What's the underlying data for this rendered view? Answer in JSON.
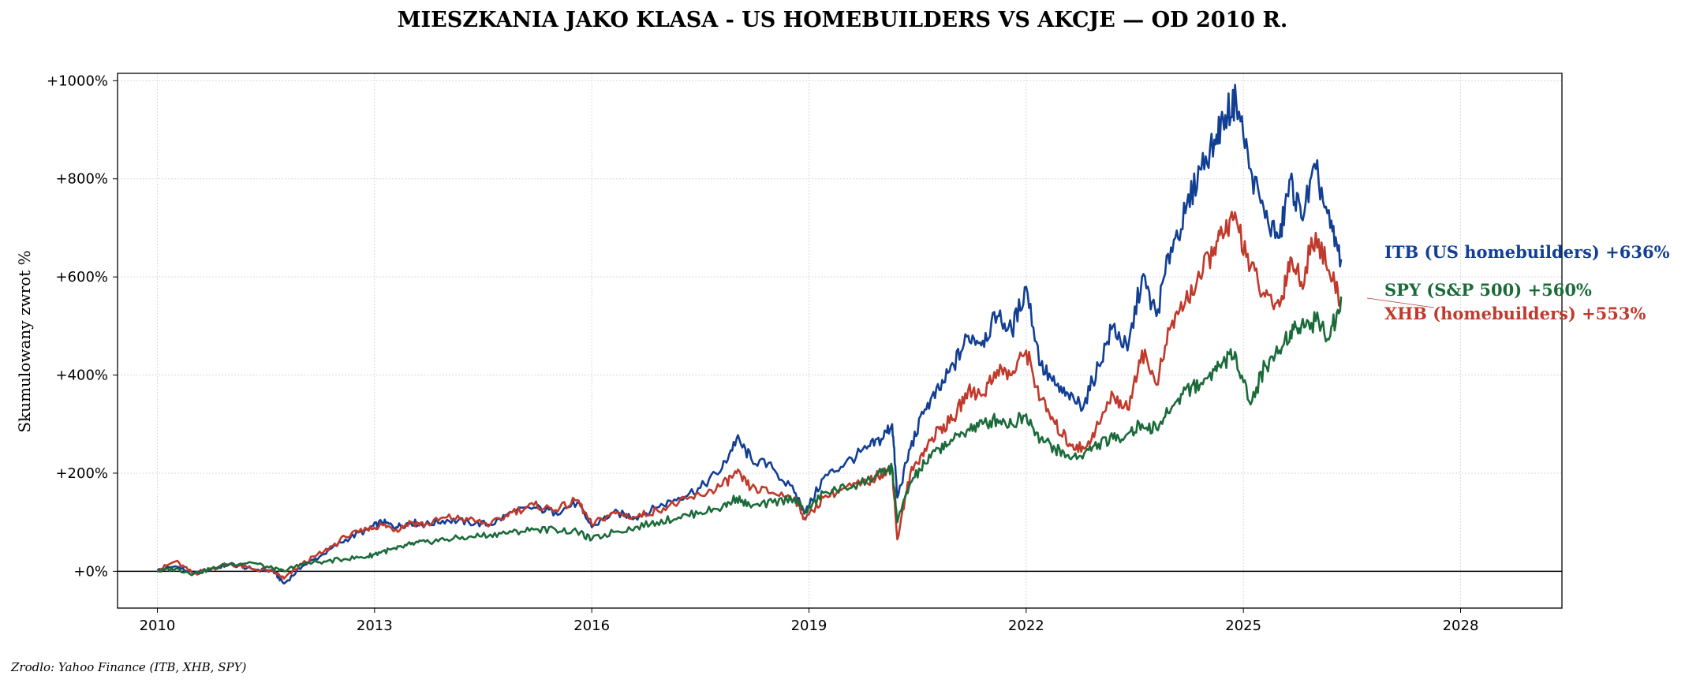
{
  "chart_data": {
    "type": "line",
    "title": "MIESZKANIA JAKO KLASA - US HOMEBUILDERS VS AKCJE — OD 2010 R.",
    "xlabel": "",
    "ylabel": "Skumulowany zwrot %",
    "xlim": [
      2009.45,
      2029.4
    ],
    "ylim": [
      -75,
      1015
    ],
    "x_ticks": [
      2010,
      2013,
      2016,
      2019,
      2022,
      2025,
      2028
    ],
    "y_ticks": [
      0,
      200,
      400,
      600,
      800,
      1000
    ],
    "y_tick_labels": [
      "+0%",
      "+200%",
      "+400%",
      "+600%",
      "+800%",
      "+1000%"
    ],
    "grid": true,
    "zero_line": true,
    "series": [
      {
        "name": "ITB (US homebuilders)",
        "end_label": "ITB (US homebuilders)  +636%",
        "color": "#123f94",
        "final": 636,
        "x": [
          2010.0,
          2010.25,
          2010.5,
          2010.75,
          2011.0,
          2011.3,
          2011.6,
          2011.75,
          2012.0,
          2012.3,
          2012.6,
          2012.9,
          2013.1,
          2013.3,
          2013.5,
          2013.7,
          2014.0,
          2014.3,
          2014.6,
          2014.9,
          2015.2,
          2015.5,
          2015.8,
          2016.0,
          2016.3,
          2016.6,
          2016.9,
          2017.2,
          2017.5,
          2017.8,
          2018.0,
          2018.2,
          2018.5,
          2018.8,
          2018.95,
          2019.2,
          2019.5,
          2019.8,
          2020.0,
          2020.15,
          2020.22,
          2020.4,
          2020.6,
          2020.8,
          2021.0,
          2021.2,
          2021.4,
          2021.6,
          2021.8,
          2022.0,
          2022.2,
          2022.4,
          2022.6,
          2022.8,
          2023.0,
          2023.2,
          2023.4,
          2023.6,
          2023.8,
          2024.0,
          2024.2,
          2024.4,
          2024.6,
          2024.75,
          2024.9,
          2025.1,
          2025.3,
          2025.5,
          2025.65,
          2025.8,
          2026.0,
          2026.2,
          2026.35
        ],
        "values": [
          2,
          10,
          -5,
          5,
          15,
          5,
          0,
          -25,
          10,
          35,
          65,
          85,
          100,
          90,
          100,
          95,
          105,
          100,
          95,
          120,
          130,
          120,
          140,
          90,
          120,
          110,
          130,
          150,
          170,
          210,
          270,
          230,
          210,
          160,
          120,
          190,
          220,
          250,
          270,
          300,
          150,
          250,
          330,
          370,
          420,
          480,
          470,
          520,
          490,
          580,
          420,
          380,
          350,
          340,
          420,
          500,
          450,
          600,
          520,
          660,
          730,
          820,
          880,
          930,
          960,
          820,
          720,
          680,
          800,
          720,
          820,
          700,
          636
        ]
      },
      {
        "name": "XHB (homebuilders)",
        "end_label": "XHB (homebuilders)  +553%",
        "color": "#c0392b",
        "final": 553,
        "x": [
          2010.0,
          2010.25,
          2010.5,
          2010.75,
          2011.0,
          2011.3,
          2011.6,
          2011.75,
          2012.0,
          2012.3,
          2012.6,
          2012.9,
          2013.1,
          2013.3,
          2013.5,
          2013.7,
          2014.0,
          2014.3,
          2014.6,
          2014.9,
          2015.2,
          2015.5,
          2015.8,
          2016.0,
          2016.3,
          2016.6,
          2016.9,
          2017.2,
          2017.5,
          2017.8,
          2018.0,
          2018.2,
          2018.5,
          2018.8,
          2018.95,
          2019.2,
          2019.5,
          2019.8,
          2020.0,
          2020.15,
          2020.22,
          2020.4,
          2020.6,
          2020.8,
          2021.0,
          2021.2,
          2021.4,
          2021.6,
          2021.8,
          2022.0,
          2022.2,
          2022.4,
          2022.6,
          2022.8,
          2023.0,
          2023.2,
          2023.4,
          2023.6,
          2023.8,
          2024.0,
          2024.2,
          2024.4,
          2024.6,
          2024.75,
          2024.9,
          2025.1,
          2025.3,
          2025.5,
          2025.65,
          2025.8,
          2026.0,
          2026.2,
          2026.35
        ],
        "values": [
          2,
          20,
          -5,
          5,
          15,
          5,
          0,
          -15,
          15,
          40,
          70,
          85,
          95,
          85,
          100,
          95,
          110,
          105,
          95,
          120,
          135,
          125,
          145,
          95,
          120,
          110,
          125,
          140,
          155,
          175,
          200,
          170,
          160,
          150,
          105,
          150,
          170,
          180,
          200,
          210,
          65,
          200,
          250,
          290,
          310,
          370,
          360,
          410,
          400,
          450,
          350,
          300,
          260,
          250,
          300,
          360,
          330,
          450,
          380,
          500,
          550,
          600,
          660,
          690,
          720,
          620,
          560,
          540,
          640,
          590,
          690,
          600,
          553
        ]
      },
      {
        "name": "SPY (S&P 500)",
        "end_label": "SPY (S&P 500)  +560%",
        "color": "#1b6b3a",
        "final": 560,
        "x": [
          2010.0,
          2010.25,
          2010.5,
          2010.75,
          2011.0,
          2011.3,
          2011.6,
          2011.75,
          2012.0,
          2012.3,
          2012.6,
          2012.9,
          2013.1,
          2013.3,
          2013.5,
          2013.7,
          2014.0,
          2014.3,
          2014.6,
          2014.9,
          2015.2,
          2015.5,
          2015.8,
          2016.0,
          2016.3,
          2016.6,
          2016.9,
          2017.2,
          2017.5,
          2017.8,
          2018.0,
          2018.2,
          2018.5,
          2018.8,
          2018.95,
          2019.2,
          2019.5,
          2019.8,
          2020.0,
          2020.15,
          2020.22,
          2020.4,
          2020.6,
          2020.8,
          2021.0,
          2021.2,
          2021.4,
          2021.6,
          2021.8,
          2022.0,
          2022.2,
          2022.4,
          2022.6,
          2022.8,
          2023.0,
          2023.2,
          2023.4,
          2023.6,
          2023.8,
          2024.0,
          2024.2,
          2024.4,
          2024.6,
          2024.75,
          2024.9,
          2025.1,
          2025.3,
          2025.5,
          2025.65,
          2025.8,
          2026.0,
          2026.2,
          2026.35
        ],
        "values": [
          0,
          5,
          -5,
          5,
          15,
          18,
          5,
          0,
          15,
          20,
          25,
          30,
          40,
          45,
          55,
          60,
          65,
          70,
          75,
          80,
          85,
          85,
          80,
          65,
          80,
          90,
          100,
          110,
          120,
          130,
          150,
          130,
          140,
          150,
          120,
          160,
          170,
          185,
          200,
          210,
          100,
          180,
          220,
          250,
          270,
          290,
          300,
          310,
          300,
          320,
          270,
          250,
          230,
          240,
          260,
          270,
          280,
          300,
          290,
          330,
          370,
          380,
          410,
          430,
          440,
          340,
          420,
          450,
          490,
          500,
          510,
          480,
          560
        ]
      }
    ]
  },
  "source_text": "Zrodlo: Yahoo Finance (ITB, XHB, SPY)"
}
